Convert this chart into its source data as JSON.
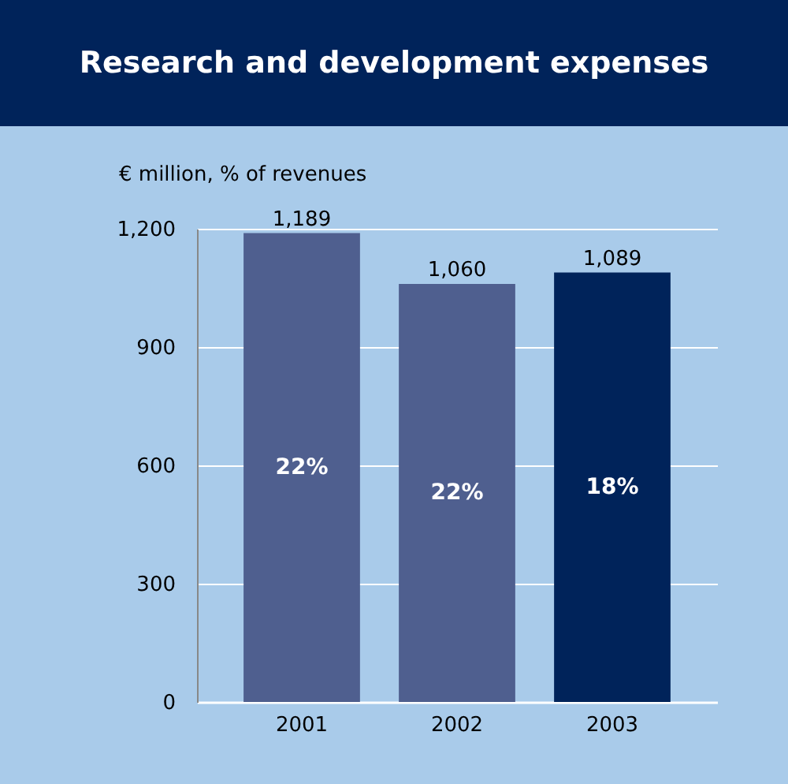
{
  "chart_data": {
    "type": "bar",
    "title": "Research and development expenses",
    "ylabel": "€ million, % of revenues",
    "categories": [
      "2001",
      "2002",
      "2003"
    ],
    "values": [
      1189,
      1060,
      1089
    ],
    "colors": [
      "#4f5f8f",
      "#4f5f8f",
      "#00235a"
    ],
    "value_labels": [
      "1,189",
      "1,060",
      "1,089"
    ],
    "annotations": [
      "22%",
      "22%",
      "18%"
    ],
    "ylim": [
      0,
      1200
    ],
    "yticks": [
      0,
      300,
      600,
      900,
      {
        "value": 1200,
        "label": "1,200"
      }
    ],
    "grid": "y",
    "legend": false
  }
}
